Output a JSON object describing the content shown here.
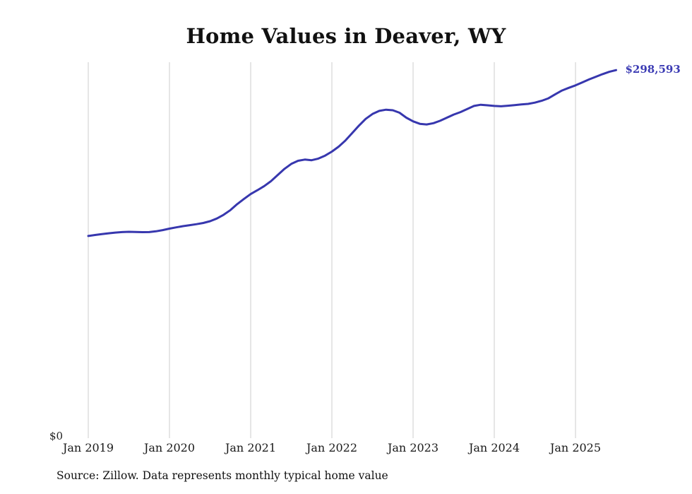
{
  "page": {
    "background_color": "#ffffff"
  },
  "chart": {
    "title": "Home Values in Deaver, WY",
    "end_label": "$298,593",
    "y_zero_label": "$0",
    "source": "Source: Zillow. Data represents monthly typical home value",
    "line_color": "#3737ae",
    "grid_color": "#cccccc",
    "end_label_color": "#3c3cb4"
  },
  "chart_data": {
    "type": "line",
    "title": "Home Values in Deaver, WY",
    "x_start": "2019-01",
    "x_interval": "monthly",
    "x_end": "2025-07",
    "x_tick_labels": [
      "Jan 2019",
      "Jan 2020",
      "Jan 2021",
      "Jan 2022",
      "Jan 2023",
      "Jan 2024",
      "Jan 2025"
    ],
    "x_tick_month_indices": [
      0,
      12,
      24,
      36,
      48,
      60,
      72
    ],
    "ylim": [
      0,
      305000
    ],
    "grid": "vertical-only",
    "legend": "none",
    "final_value": 298593,
    "annotations": [
      {
        "text": "$298,593",
        "position": "end-of-line"
      },
      {
        "text": "$0",
        "position": "y-axis-bottom"
      }
    ],
    "series": [
      {
        "name": "Typical home value",
        "values": [
          164000,
          164800,
          165500,
          166200,
          166800,
          167200,
          167400,
          167300,
          167100,
          167200,
          167800,
          168800,
          170000,
          171000,
          172000,
          172800,
          173600,
          174600,
          176000,
          178200,
          181200,
          185000,
          189800,
          194000,
          198000,
          201200,
          204500,
          208500,
          213500,
          218500,
          222500,
          225000,
          226000,
          225500,
          226800,
          229200,
          232500,
          236500,
          241500,
          247500,
          253500,
          259000,
          263000,
          265500,
          266500,
          266000,
          264000,
          260000,
          257000,
          255000,
          254500,
          255500,
          257500,
          260000,
          262500,
          264500,
          267000,
          269500,
          270500,
          270000,
          269500,
          269200,
          269700,
          270200,
          270700,
          271200,
          272200,
          273700,
          275700,
          279000,
          282000,
          284200,
          286200,
          288600,
          291000,
          293200,
          295300,
          297200,
          298593
        ]
      }
    ]
  }
}
